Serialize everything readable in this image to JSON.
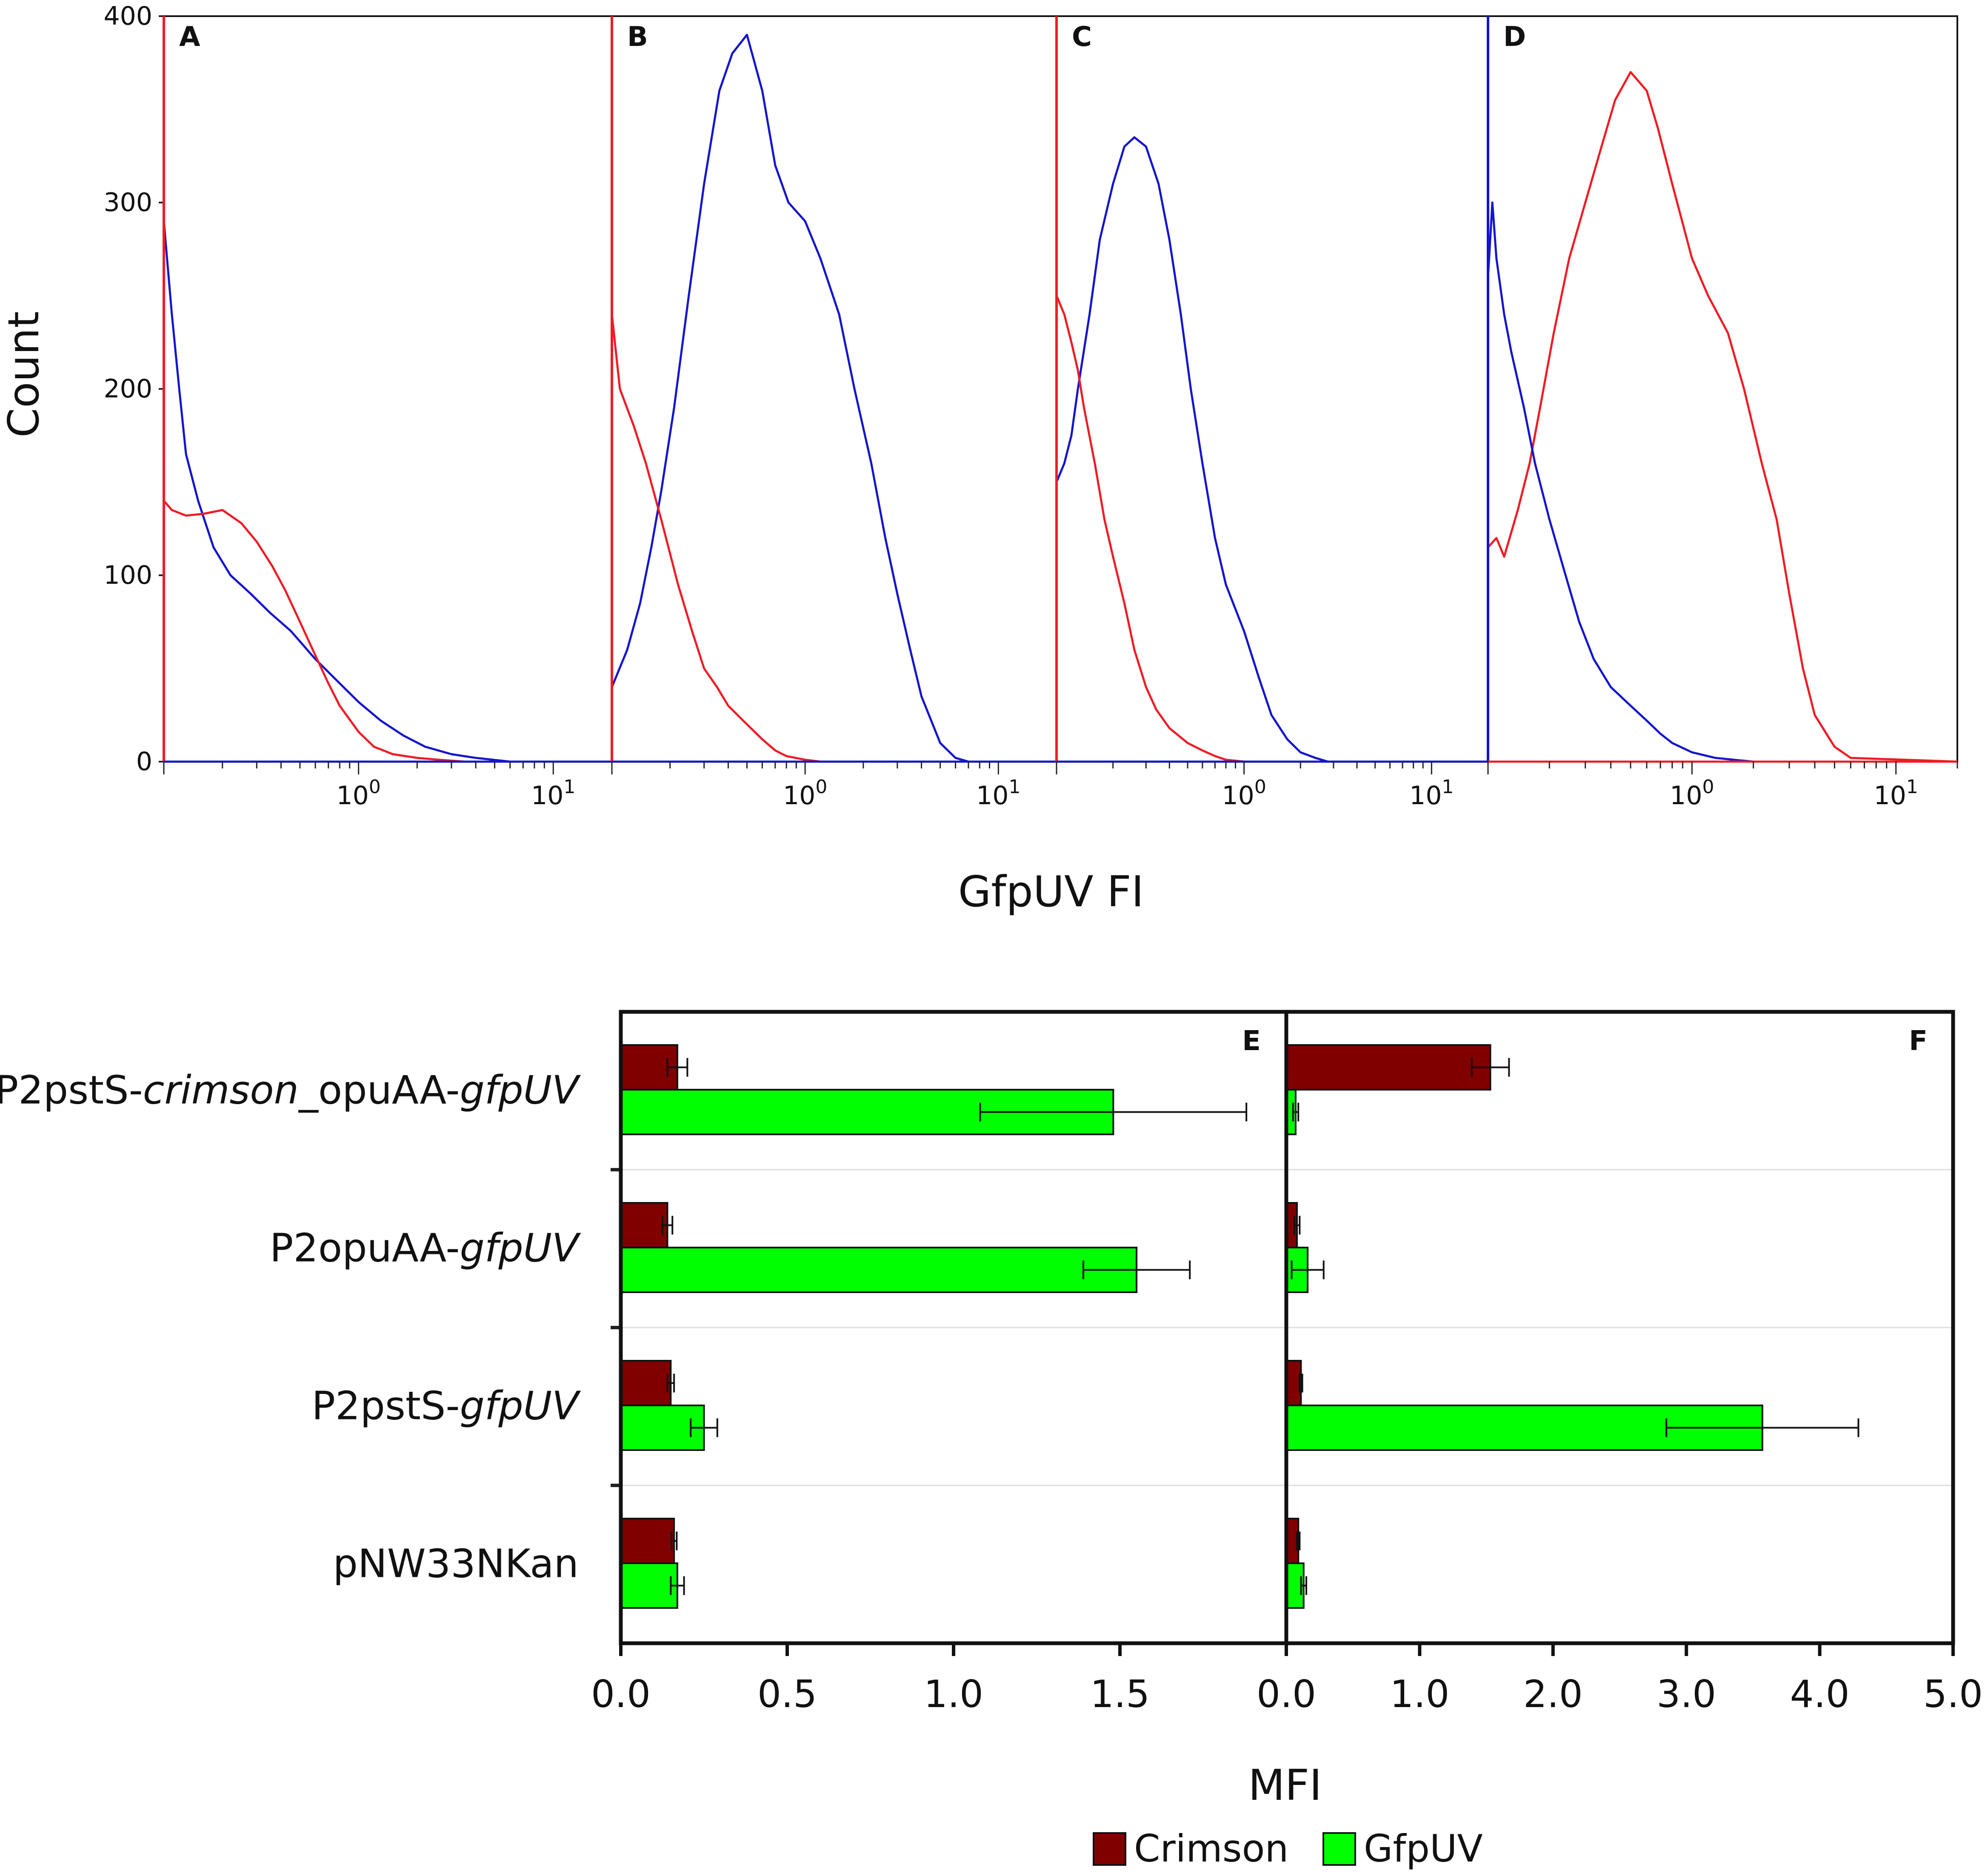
{
  "chart_data": [
    {
      "type": "line",
      "title": "",
      "xlabel": "GfpUV FI",
      "ylabel": "Count",
      "ylim": [
        0,
        400
      ],
      "yticks": [
        "0",
        "100",
        "200",
        "300",
        "400"
      ],
      "x_tick_labels": [
        {
          "base": "10",
          "exp": "0",
          "value": 1
        },
        {
          "base": "10",
          "exp": "1",
          "value": 10
        }
      ],
      "xlim_log": [
        0.1,
        20
      ],
      "series_colors": {
        "red": "#ee1c25",
        "blue": "#1515cc"
      },
      "panels": [
        {
          "letter": "A",
          "boundary_color": "#ee1c25",
          "series": [
            {
              "name": "blue",
              "color": "#1515cc",
              "x": [
                0.1,
                0.11,
                0.12,
                0.13,
                0.15,
                0.18,
                0.22,
                0.28,
                0.35,
                0.45,
                0.6,
                0.8,
                1.0,
                1.3,
                1.7,
                2.2,
                3.0,
                4.0,
                6.0,
                20.0
              ],
              "y": [
                290,
                240,
                200,
                165,
                140,
                115,
                100,
                90,
                80,
                70,
                55,
                42,
                32,
                22,
                14,
                8,
                4,
                2,
                0,
                0
              ]
            },
            {
              "name": "red",
              "color": "#ee1c25",
              "x": [
                0.1,
                0.11,
                0.13,
                0.16,
                0.2,
                0.25,
                0.3,
                0.36,
                0.42,
                0.5,
                0.6,
                0.7,
                0.8,
                1.0,
                1.2,
                1.5,
                2.0,
                2.6,
                3.5,
                20.0
              ],
              "y": [
                140,
                135,
                132,
                133,
                135,
                128,
                118,
                105,
                92,
                75,
                57,
                42,
                30,
                16,
                8,
                4,
                2,
                1,
                0,
                0
              ]
            }
          ]
        },
        {
          "letter": "B",
          "boundary_color": "#ee1c25",
          "series": [
            {
              "name": "blue",
              "color": "#1515cc",
              "x": [
                0.1,
                0.12,
                0.14,
                0.16,
                0.18,
                0.21,
                0.25,
                0.3,
                0.36,
                0.42,
                0.5,
                0.6,
                0.7,
                0.82,
                1.0,
                1.2,
                1.5,
                1.8,
                2.2,
                2.6,
                3.0,
                3.5,
                4.0,
                5.0,
                6.0,
                7.0,
                9.0,
                20.0
              ],
              "y": [
                40,
                60,
                85,
                115,
                145,
                190,
                250,
                310,
                360,
                380,
                390,
                360,
                320,
                300,
                290,
                270,
                240,
                200,
                160,
                120,
                90,
                60,
                35,
                10,
                2,
                0,
                0,
                0
              ]
            },
            {
              "name": "red",
              "color": "#ee1c25",
              "x": [
                0.1,
                0.11,
                0.13,
                0.15,
                0.18,
                0.22,
                0.26,
                0.3,
                0.35,
                0.4,
                0.5,
                0.6,
                0.7,
                0.8,
                1.0,
                1.2,
                1.6,
                2.0,
                20.0
              ],
              "y": [
                240,
                200,
                180,
                160,
                130,
                95,
                70,
                50,
                40,
                30,
                20,
                12,
                6,
                3,
                1,
                0,
                0,
                0,
                0
              ]
            }
          ]
        },
        {
          "letter": "C",
          "boundary_color": "#ee1c25",
          "series": [
            {
              "name": "blue",
              "color": "#1515cc",
              "x": [
                0.1,
                0.11,
                0.12,
                0.13,
                0.15,
                0.17,
                0.2,
                0.23,
                0.26,
                0.3,
                0.35,
                0.4,
                0.46,
                0.52,
                0.6,
                0.7,
                0.8,
                1.0,
                1.2,
                1.4,
                1.7,
                2.0,
                2.4,
                2.8,
                3.5,
                20.0
              ],
              "y": [
                150,
                160,
                175,
                200,
                240,
                280,
                310,
                330,
                335,
                330,
                310,
                280,
                240,
                200,
                160,
                120,
                95,
                70,
                45,
                25,
                12,
                5,
                2,
                0,
                0,
                0
              ]
            },
            {
              "name": "red",
              "color": "#ee1c25",
              "x": [
                0.1,
                0.11,
                0.12,
                0.13,
                0.14,
                0.16,
                0.18,
                0.2,
                0.23,
                0.26,
                0.3,
                0.34,
                0.4,
                0.5,
                0.6,
                0.7,
                0.8,
                1.0,
                1.2,
                20.0
              ],
              "y": [
                250,
                240,
                225,
                210,
                190,
                160,
                130,
                110,
                85,
                60,
                40,
                28,
                18,
                10,
                6,
                3,
                1,
                0,
                0,
                0
              ]
            }
          ]
        },
        {
          "letter": "D",
          "boundary_color": "#1515cc",
          "series": [
            {
              "name": "red",
              "color": "#ee1c25",
              "x": [
                0.1,
                0.11,
                0.12,
                0.14,
                0.16,
                0.18,
                0.21,
                0.25,
                0.3,
                0.36,
                0.42,
                0.5,
                0.6,
                0.68,
                0.8,
                1.0,
                1.2,
                1.5,
                1.8,
                2.2,
                2.6,
                3.0,
                3.5,
                4.0,
                5.0,
                6.0,
                20.0
              ],
              "y": [
                115,
                120,
                110,
                135,
                160,
                190,
                230,
                270,
                300,
                330,
                355,
                370,
                360,
                340,
                310,
                270,
                250,
                230,
                200,
                160,
                130,
                90,
                50,
                25,
                8,
                2,
                0
              ]
            },
            {
              "name": "blue",
              "color": "#1515cc",
              "x": [
                0.1,
                0.105,
                0.11,
                0.12,
                0.13,
                0.15,
                0.17,
                0.2,
                0.24,
                0.28,
                0.33,
                0.4,
                0.5,
                0.6,
                0.7,
                0.8,
                1.0,
                1.3,
                1.6,
                2.0,
                20.0
              ],
              "y": [
                260,
                300,
                270,
                240,
                220,
                190,
                160,
                130,
                100,
                75,
                55,
                40,
                30,
                22,
                15,
                10,
                5,
                2,
                1,
                0,
                0
              ]
            }
          ]
        }
      ]
    },
    {
      "type": "bar",
      "orientation": "horizontal",
      "xlabel": "MFI",
      "categories": [
        [
          {
            "text": "P2pstS-",
            "italic": false
          },
          {
            "text": "crimson",
            "italic": true
          },
          {
            "text": "_opuAA-",
            "italic": false
          },
          {
            "text": "gfpUV",
            "italic": true
          }
        ],
        [
          {
            "text": "P2opuAA-",
            "italic": false
          },
          {
            "text": "gfpUV",
            "italic": true
          }
        ],
        [
          {
            "text": "P2pstS-",
            "italic": false
          },
          {
            "text": "gfpUV",
            "italic": true
          }
        ],
        [
          {
            "text": "pNW33NKan",
            "italic": false
          }
        ]
      ],
      "legend": [
        {
          "name": "Crimson",
          "color": "#800000"
        },
        {
          "name": "GfpUV",
          "color": "#00ff00"
        }
      ],
      "panels": [
        {
          "letter": "E",
          "xlim": [
            0,
            2.0
          ],
          "xticks": [
            "0.0",
            "0.5",
            "1.0",
            "1.5"
          ],
          "xtick_values": [
            0,
            0.5,
            1.0,
            1.5
          ],
          "series": [
            {
              "name": "Crimson",
              "values": [
                0.17,
                0.14,
                0.15,
                0.16
              ],
              "errors": [
                0.03,
                0.015,
                0.01,
                0.008
              ]
            },
            {
              "name": "GfpUV",
              "values": [
                1.48,
                1.55,
                0.25,
                0.17
              ],
              "errors": [
                0.4,
                0.16,
                0.04,
                0.02
              ]
            }
          ]
        },
        {
          "letter": "F",
          "xlim": [
            0,
            5.0
          ],
          "xticks": [
            "0.0",
            "1.0",
            "2.0",
            "3.0",
            "4.0",
            "5.0"
          ],
          "xtick_values": [
            0,
            1.0,
            2.0,
            3.0,
            4.0,
            5.0
          ],
          "series": [
            {
              "name": "Crimson",
              "values": [
                1.53,
                0.08,
                0.11,
                0.09
              ],
              "errors": [
                0.14,
                0.02,
                0.01,
                0.01
              ]
            },
            {
              "name": "GfpUV",
              "values": [
                0.07,
                0.16,
                3.57,
                0.13
              ],
              "errors": [
                0.02,
                0.12,
                0.72,
                0.02
              ]
            }
          ]
        }
      ]
    }
  ]
}
